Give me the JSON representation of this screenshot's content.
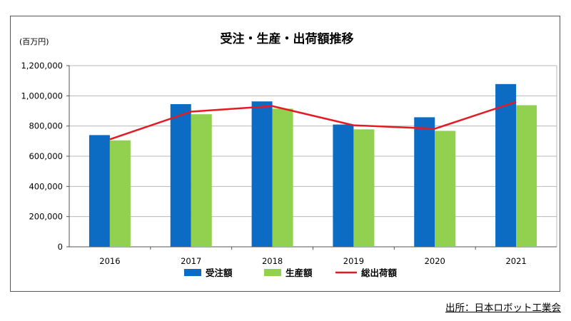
{
  "chart_data": {
    "type": "bar",
    "title": "受注・生産・出荷額推移",
    "unit_label": "(百万円)",
    "categories": [
      "2016",
      "2017",
      "2018",
      "2019",
      "2020",
      "2021"
    ],
    "ylim": [
      0,
      1200000
    ],
    "yticks": [
      "0",
      "200,000",
      "400,000",
      "600,000",
      "800,000",
      "1,000,000",
      "1,200,000"
    ],
    "grid": true,
    "legend_position": "bottom",
    "series": [
      {
        "name": "受注額",
        "kind": "bar",
        "color": "#0c6cc4",
        "values": [
          740000,
          945000,
          963000,
          810000,
          858000,
          1078000
        ]
      },
      {
        "name": "生産額",
        "kind": "bar",
        "color": "#92d050",
        "values": [
          705000,
          878000,
          915000,
          778000,
          768000,
          938000
        ]
      },
      {
        "name": "総出荷額",
        "kind": "line",
        "color": "#e31b23",
        "values": [
          712000,
          895000,
          932000,
          805000,
          782000,
          960000
        ]
      }
    ]
  },
  "source": "出所：日本ロボット工業会"
}
